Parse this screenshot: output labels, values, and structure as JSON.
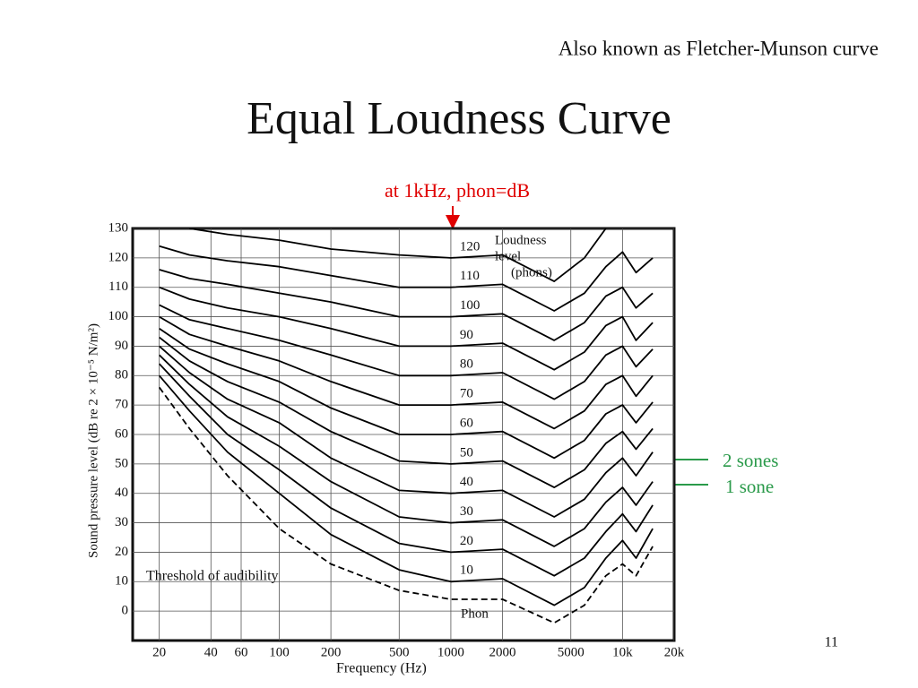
{
  "slide": {
    "subtitle": "Also known as Fletcher-Munson curve",
    "title": "Equal Loudness Curve",
    "note": "at 1kHz, phon=dB",
    "sones": [
      "2 sones",
      "1 sone"
    ],
    "page_number": "11"
  },
  "chart_data": {
    "type": "line",
    "x_label": "Frequency (Hz)",
    "y_label": "Sound pressure level (dB re 2 × 10⁻⁵ N/m²)",
    "legend_title": [
      "Loudness",
      "level",
      "(phons)"
    ],
    "unit_label": "Phon",
    "log_x": true,
    "grid": true,
    "xlim": [
      14,
      20000
    ],
    "xticks": [
      20,
      40,
      60,
      100,
      200,
      500,
      1000,
      2000,
      5000,
      {
        "value": 10000,
        "label": "10k"
      },
      {
        "value": 20000,
        "label": "20k"
      }
    ],
    "ylim": [
      -10,
      130
    ],
    "yticks": [
      0,
      10,
      20,
      30,
      40,
      50,
      60,
      70,
      80,
      90,
      100,
      110,
      120,
      130
    ],
    "x": [
      20,
      30,
      50,
      100,
      200,
      500,
      1000,
      2000,
      4000,
      6000,
      8000,
      10000,
      12000,
      15000
    ],
    "series": [
      {
        "name": "Threshold of audibility",
        "color": "#000000",
        "line_style": "dashed",
        "values": [
          76,
          62,
          46,
          28,
          16,
          7,
          4,
          4,
          -4,
          2,
          12,
          16,
          12,
          22
        ]
      },
      {
        "name": "10",
        "color": "#000000",
        "values": [
          80,
          68,
          54,
          40,
          26,
          14,
          10,
          11,
          2,
          8,
          18,
          24,
          18,
          28
        ]
      },
      {
        "name": "20",
        "color": "#000000",
        "values": [
          84,
          73,
          60,
          48,
          35,
          23,
          20,
          21,
          12,
          18,
          27,
          33,
          27,
          36
        ]
      },
      {
        "name": "30",
        "color": "#000000",
        "values": [
          87,
          77,
          66,
          56,
          44,
          32,
          30,
          31,
          22,
          28,
          37,
          42,
          36,
          44
        ]
      },
      {
        "name": "40",
        "color": "#000000",
        "values": [
          90,
          81,
          72,
          64,
          52,
          41,
          40,
          41,
          32,
          38,
          47,
          52,
          46,
          54
        ]
      },
      {
        "name": "50",
        "color": "#000000",
        "values": [
          93,
          85,
          78,
          71,
          61,
          51,
          50,
          51,
          42,
          48,
          57,
          61,
          55,
          62
        ]
      },
      {
        "name": "60",
        "color": "#000000",
        "values": [
          96,
          89,
          84,
          78,
          69,
          60,
          60,
          61,
          52,
          58,
          67,
          70,
          64,
          71
        ]
      },
      {
        "name": "70",
        "color": "#000000",
        "values": [
          100,
          94,
          90,
          85,
          78,
          70,
          70,
          71,
          62,
          68,
          77,
          80,
          73,
          80
        ]
      },
      {
        "name": "80",
        "color": "#000000",
        "values": [
          104,
          99,
          96,
          92,
          87,
          80,
          80,
          81,
          72,
          78,
          87,
          90,
          83,
          89
        ]
      },
      {
        "name": "90",
        "color": "#000000",
        "values": [
          110,
          106,
          103,
          100,
          96,
          90,
          90,
          91,
          82,
          88,
          97,
          100,
          92,
          98
        ]
      },
      {
        "name": "100",
        "color": "#000000",
        "values": [
          116,
          113,
          111,
          108,
          105,
          100,
          100,
          101,
          92,
          98,
          107,
          110,
          103,
          108
        ]
      },
      {
        "name": "110",
        "color": "#000000",
        "values": [
          124,
          121,
          119,
          117,
          114,
          110,
          110,
          111,
          102,
          108,
          117,
          122,
          115,
          120
        ]
      },
      {
        "name": "120",
        "color": "#000000",
        "values": [
          null,
          130,
          128,
          126,
          123,
          121,
          120,
          121,
          112,
          120,
          130,
          null,
          null,
          null
        ]
      }
    ]
  }
}
